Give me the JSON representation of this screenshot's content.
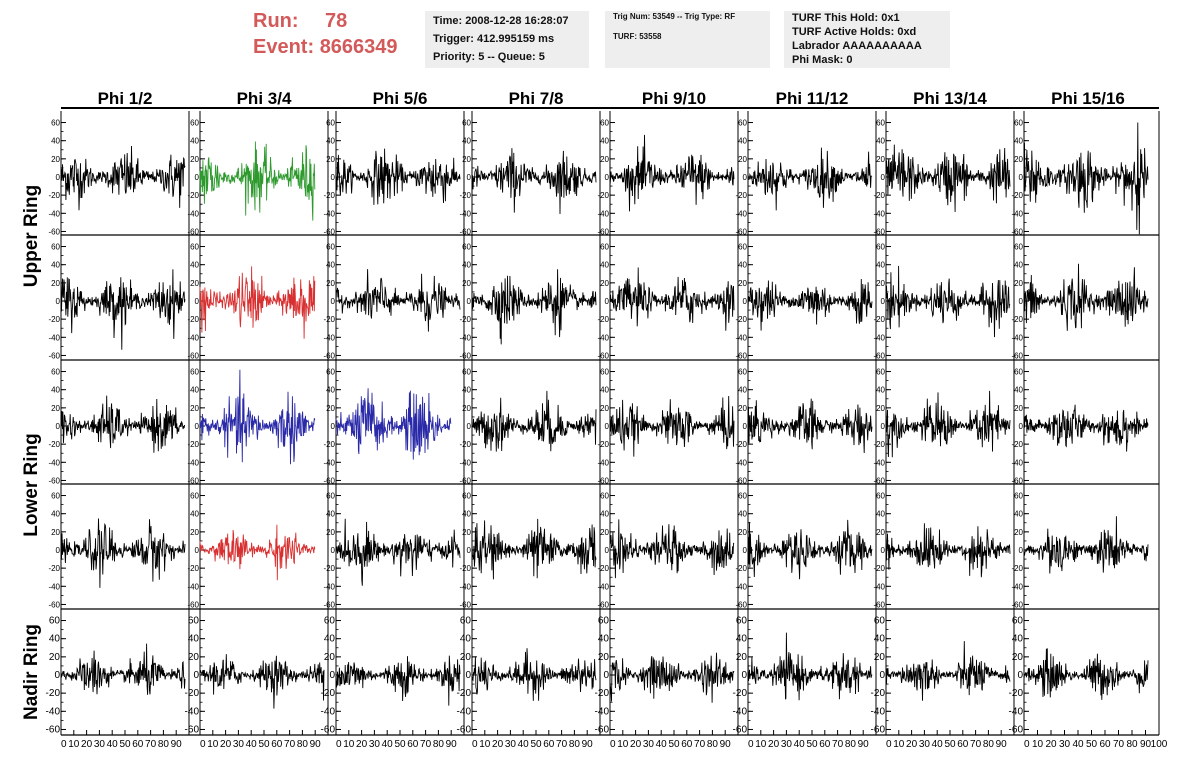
{
  "header": {
    "run_label": "Run:",
    "run_value": "78",
    "event_label": "Event:",
    "event_value": "8666349",
    "time": "Time: 2008-12-28 16:28:07",
    "trigger": "Trigger: 412.995159 ms",
    "priority": "Priority: 5 -- Queue: 5",
    "trig_num": "Trig Num: 53549 -- Trig Type: RF",
    "turf": "TURF: 53558",
    "turf_hold": "TURF This Hold: 0x1",
    "turf_active": "TURF Active Holds: 0xd",
    "labrador": "Labrador AAAAAAAAAA",
    "phi_mask": "Phi Mask: 0"
  },
  "colors": {
    "header_red": "#d35a5a",
    "box_bg": "#eeeeee",
    "trace_default": "#000000",
    "trace_green": "#2e9a2e",
    "trace_red": "#d83030",
    "trace_blue": "#2a2aa8"
  },
  "chart_data": {
    "type": "line",
    "title": "",
    "columns": [
      "Phi 1/2",
      "Phi 3/4",
      "Phi 5/6",
      "Phi 7/8",
      "Phi 9/10",
      "Phi 11/12",
      "Phi 13/14",
      "Phi 15/16"
    ],
    "ring_labels": [
      {
        "label": "Upper Ring",
        "rows": [
          0,
          1
        ]
      },
      {
        "label": "Lower Ring",
        "rows": [
          2,
          3
        ]
      },
      {
        "label": "Nadir Ring",
        "rows": [
          4
        ]
      }
    ],
    "rows": 5,
    "ylim": [
      -65,
      65
    ],
    "yticks": [
      -60,
      -40,
      -20,
      0,
      20,
      40,
      60
    ],
    "xlim": [
      0,
      100
    ],
    "xticks": [
      0,
      10,
      20,
      30,
      40,
      50,
      60,
      70,
      80,
      90,
      100
    ],
    "x_step": 0.38,
    "samples": 260,
    "grid": false,
    "legend": "none",
    "highlighted_traces": [
      {
        "row": 0,
        "col": 1,
        "color": "green"
      },
      {
        "row": 1,
        "col": 1,
        "color": "red"
      },
      {
        "row": 2,
        "col": 1,
        "color": "blue"
      },
      {
        "row": 2,
        "col": 2,
        "color": "blue"
      },
      {
        "row": 3,
        "col": 1,
        "color": "red"
      }
    ],
    "trace_extents": {
      "highlighted_end_x": 90,
      "default_end_x": 97
    },
    "trace_amplitude_std": [
      [
        12,
        14,
        13,
        12,
        12,
        11,
        14,
        15
      ],
      [
        12,
        14,
        12,
        13,
        12,
        11,
        12,
        13
      ],
      [
        11,
        15,
        17,
        12,
        11,
        11,
        12,
        12
      ],
      [
        12,
        10,
        12,
        12,
        11,
        11,
        11,
        11
      ],
      [
        10,
        9,
        9,
        10,
        10,
        11,
        10,
        10
      ]
    ],
    "notable_spikes": [
      {
        "row": 0,
        "col": 7,
        "x": 89,
        "y": 60
      },
      {
        "row": 0,
        "col": 7,
        "x": 90,
        "y": -63
      }
    ]
  }
}
